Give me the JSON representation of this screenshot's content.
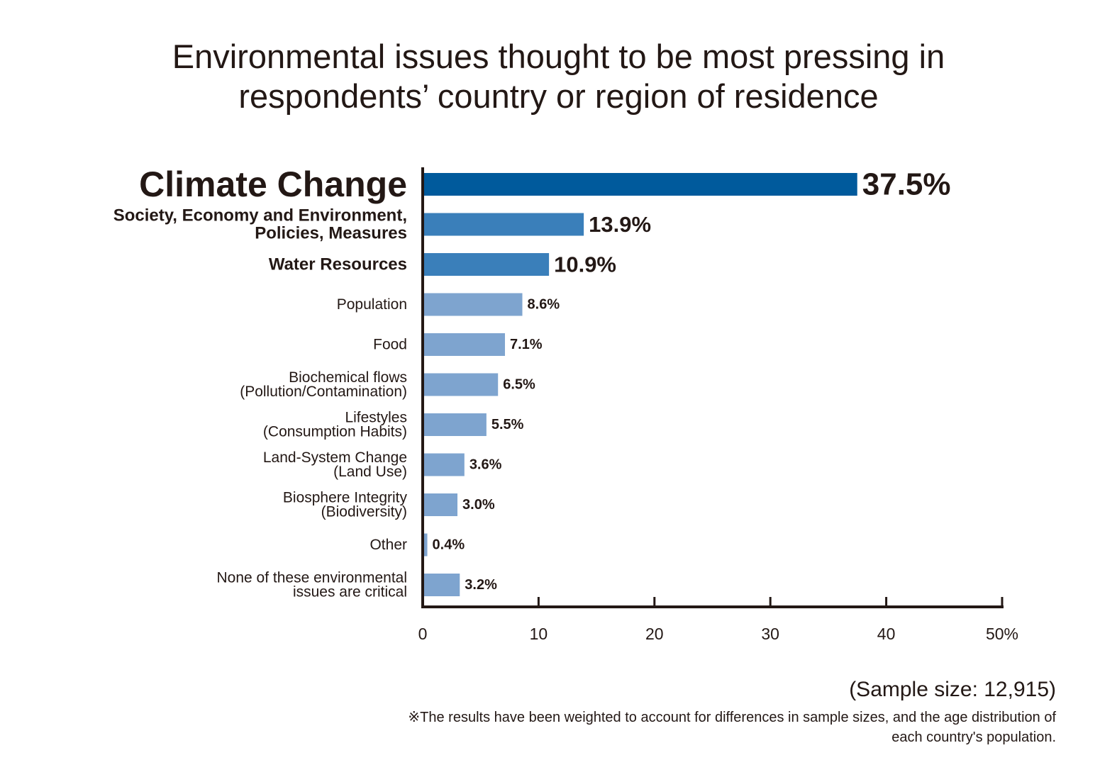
{
  "title": {
    "lines": [
      "Environmental issues thought to be most pressing in",
      "respondents’ country or region of residence"
    ]
  },
  "colors": {
    "tier1": "#005a9c",
    "tier2": "#3a7fba",
    "tier3": "#7ea4cf",
    "axis": "#231815",
    "text": "#231815"
  },
  "chart_data": {
    "type": "bar",
    "orientation": "horizontal",
    "categories": [
      [
        "Climate Change"
      ],
      [
        "Society, Economy and Environment,",
        "Policies, Measures"
      ],
      [
        "Water Resources"
      ],
      [
        "Population"
      ],
      [
        "Food"
      ],
      [
        "Biochemical flows",
        "(Pollution/Contamination)"
      ],
      [
        "Lifestyles",
        "(Consumption Habits)"
      ],
      [
        "Land-System Change",
        "(Land Use)"
      ],
      [
        "Biosphere Integrity",
        "(Biodiversity)"
      ],
      [
        "Other"
      ],
      [
        "None of these environmental",
        "issues are critical"
      ]
    ],
    "values": [
      37.5,
      13.9,
      10.9,
      8.6,
      7.1,
      6.5,
      5.5,
      3.6,
      3.0,
      0.4,
      3.2
    ],
    "value_labels": [
      "37.5%",
      "13.9%",
      "10.9%",
      "8.6%",
      "7.1%",
      "6.5%",
      "5.5%",
      "3.6%",
      "3.0%",
      "0.4%",
      "3.2%"
    ],
    "emphasis": [
      1,
      2,
      2,
      3,
      3,
      3,
      3,
      3,
      3,
      3,
      3
    ],
    "xlim": [
      0,
      50
    ],
    "xticks": [
      "0",
      "10",
      "20",
      "30",
      "40",
      "50%"
    ],
    "grid": false,
    "legend": "none"
  },
  "footer": {
    "sample_size": "(Sample size: 12,915)",
    "note": "※The results have been weighted to account for differences in sample sizes, and the age distribution of each country's population."
  }
}
